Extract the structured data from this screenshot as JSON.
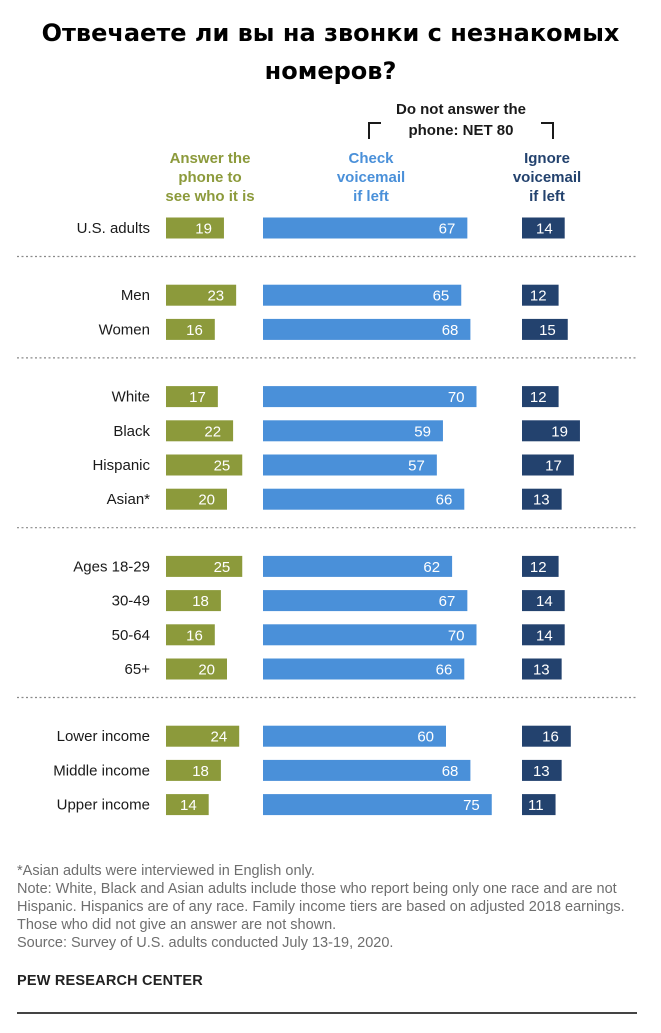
{
  "title_line1": "Отвечаете ли вы на звонки с незнакомых",
  "title_line2": "номеров?",
  "chart_data": {
    "type": "bar",
    "group_header": {
      "line1": "Do not answer the",
      "line2": "phone: NET 80"
    },
    "series": [
      {
        "key": "answer",
        "name_lines": [
          "Answer the",
          "phone to",
          "see who it is"
        ],
        "color": "#8c9a3b"
      },
      {
        "key": "check",
        "name_lines": [
          "Check",
          "voicemail",
          "if left"
        ],
        "color": "#4a90d9"
      },
      {
        "key": "ignore",
        "name_lines": [
          "Ignore",
          "voicemail",
          "if left"
        ],
        "color": "#23426e"
      }
    ],
    "groups": [
      {
        "rows": [
          {
            "label": "U.S. adults",
            "values": [
              19,
              67,
              14
            ]
          }
        ]
      },
      {
        "rows": [
          {
            "label": "Men",
            "values": [
              23,
              65,
              12
            ]
          },
          {
            "label": "Women",
            "values": [
              16,
              68,
              15
            ]
          }
        ]
      },
      {
        "rows": [
          {
            "label": "White",
            "values": [
              17,
              70,
              12
            ]
          },
          {
            "label": "Black",
            "values": [
              22,
              59,
              19
            ]
          },
          {
            "label": "Hispanic",
            "values": [
              25,
              57,
              17
            ]
          },
          {
            "label": "Asian*",
            "values": [
              20,
              66,
              13
            ]
          }
        ]
      },
      {
        "rows": [
          {
            "label": "Ages 18-29",
            "values": [
              25,
              62,
              12
            ]
          },
          {
            "label": "30-49",
            "values": [
              18,
              67,
              14
            ]
          },
          {
            "label": "50-64",
            "values": [
              16,
              70,
              14
            ]
          },
          {
            "label": "65+",
            "values": [
              20,
              66,
              13
            ]
          }
        ]
      },
      {
        "rows": [
          {
            "label": "Lower income",
            "values": [
              24,
              60,
              16
            ]
          },
          {
            "label": "Middle income",
            "values": [
              18,
              68,
              13
            ]
          },
          {
            "label": "Upper income",
            "values": [
              14,
              75,
              11
            ]
          }
        ]
      }
    ]
  },
  "notes": {
    "asian": "*Asian adults were interviewed in English only.",
    "note": "Note: White, Black and Asian adults include those who report being only one race and are not Hispanic. Hispanics are of any race. Family income tiers are based on adjusted 2018 earnings. Those who did not give an answer are not shown.",
    "source": "Source: Survey of U.S. adults conducted July 13-19, 2020."
  },
  "org": "PEW RESEARCH CENTER"
}
